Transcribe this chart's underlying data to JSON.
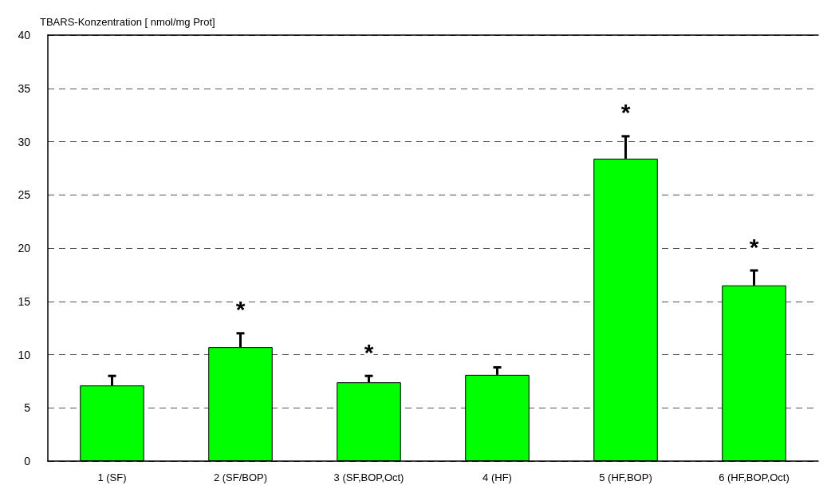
{
  "chart_data": {
    "type": "bar",
    "ylabel": "TBARS-Konzentration [ nmol/mg Prot]",
    "categories": [
      "1 (SF)",
      "2 (SF/BOP)",
      "3 (SF,BOP,Oct)",
      "4 (HF)",
      "5 (HF,BOP)",
      "6 (HF,BOP,Oct)"
    ],
    "values": [
      7.1,
      10.7,
      7.4,
      8.1,
      28.4,
      16.5
    ],
    "errors": [
      [
        7.1,
        8.0
      ],
      [
        10.7,
        12.0
      ],
      [
        7.4,
        8.0
      ],
      [
        8.1,
        8.8
      ],
      [
        28.4,
        30.5
      ],
      [
        16.5,
        17.9
      ]
    ],
    "value_labels": [
      null,
      "*",
      "*",
      null,
      "*",
      "*"
    ],
    "color": "#00ff00",
    "ylim": [
      0,
      40
    ],
    "yticks": [
      0,
      5,
      10,
      15,
      20,
      25,
      30,
      35,
      40
    ],
    "grid": "y"
  }
}
